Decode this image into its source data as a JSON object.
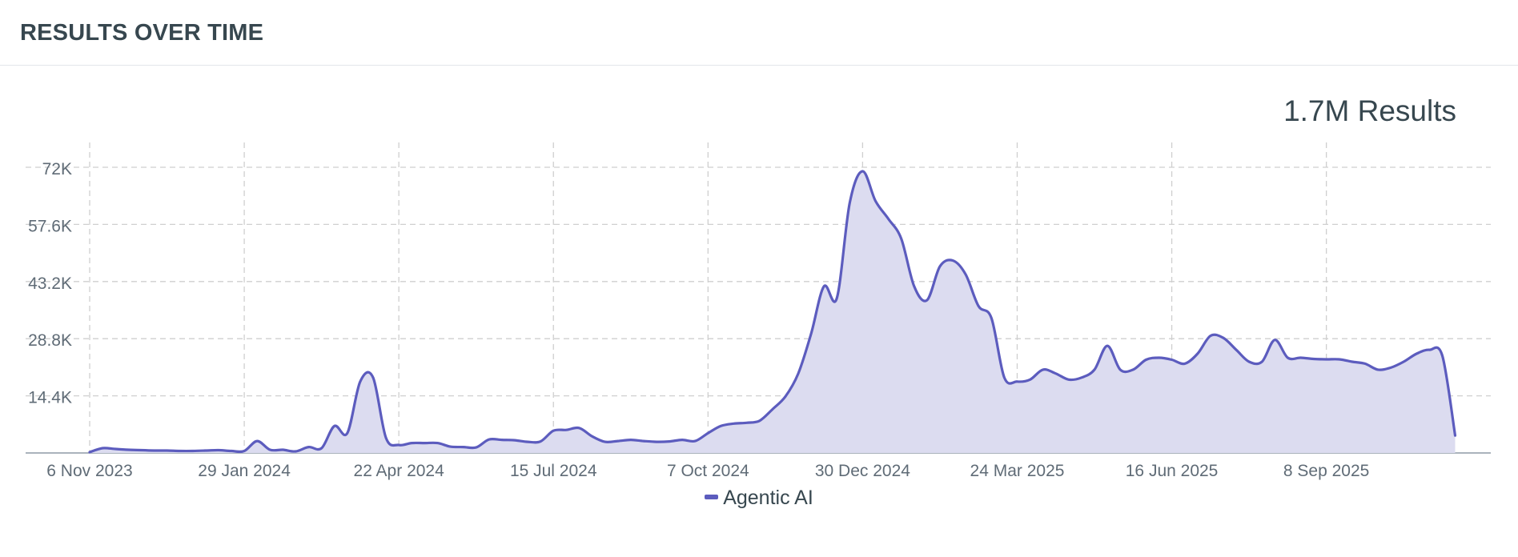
{
  "panel": {
    "title": "RESULTS OVER TIME",
    "total": "1.7M Results"
  },
  "colors": {
    "series": "#5c5cbe",
    "fill": "#dcdcf0",
    "grid": "#cfcfcf",
    "axis": "#8e9aa6",
    "text": "#5f6b76"
  },
  "chart_data": {
    "type": "area",
    "title": "",
    "xlabel": "",
    "ylabel": "",
    "x_start": "2023-11-06",
    "x_interval_days": 7,
    "ylim": [
      0,
      72000
    ],
    "y_ticks": [
      {
        "value": 14400,
        "label": "14.4K"
      },
      {
        "value": 28800,
        "label": "28.8K"
      },
      {
        "value": 43200,
        "label": "43.2K"
      },
      {
        "value": 57600,
        "label": "57.6K"
      },
      {
        "value": 72000,
        "label": "72K"
      }
    ],
    "x_ticks": [
      {
        "week": 0,
        "label": "6 Nov 2023"
      },
      {
        "week": 12,
        "label": "29 Jan 2024"
      },
      {
        "week": 24,
        "label": "22 Apr 2024"
      },
      {
        "week": 36,
        "label": "15 Jul 2024"
      },
      {
        "week": 48,
        "label": "7 Oct 2024"
      },
      {
        "week": 60,
        "label": "30 Dec 2024"
      },
      {
        "week": 72,
        "label": "24 Mar 2025"
      },
      {
        "week": 84,
        "label": "16 Jun 2025"
      },
      {
        "week": 96,
        "label": "8 Sep 2025"
      }
    ],
    "grid": true,
    "legend": "bottom-center",
    "series": [
      {
        "name": "Agentic AI",
        "values": [
          200,
          1200,
          1000,
          800,
          700,
          600,
          600,
          500,
          500,
          600,
          700,
          500,
          500,
          3000,
          800,
          800,
          400,
          1500,
          1200,
          6800,
          5000,
          18000,
          19000,
          3800,
          2000,
          2500,
          2500,
          2500,
          1600,
          1500,
          1400,
          3400,
          3300,
          3200,
          2800,
          2900,
          5600,
          5800,
          6300,
          4200,
          2800,
          3000,
          3300,
          3000,
          2800,
          2900,
          3300,
          3000,
          5000,
          6800,
          7400,
          7600,
          8100,
          11000,
          14200,
          20000,
          30000,
          42000,
          39000,
          63000,
          71000,
          63500,
          59000,
          54000,
          42000,
          38500,
          47000,
          48500,
          45000,
          37000,
          34000,
          19000,
          18000,
          18500,
          21000,
          20000,
          18500,
          19000,
          21000,
          27000,
          21000,
          21000,
          23500,
          24000,
          23500,
          22500,
          25000,
          29500,
          29000,
          26000,
          23000,
          23000,
          28500,
          24000,
          24000,
          23700,
          23600,
          23600,
          23000,
          22500,
          21000,
          21500,
          23000,
          25000,
          26000,
          24500,
          4400
        ]
      }
    ]
  }
}
